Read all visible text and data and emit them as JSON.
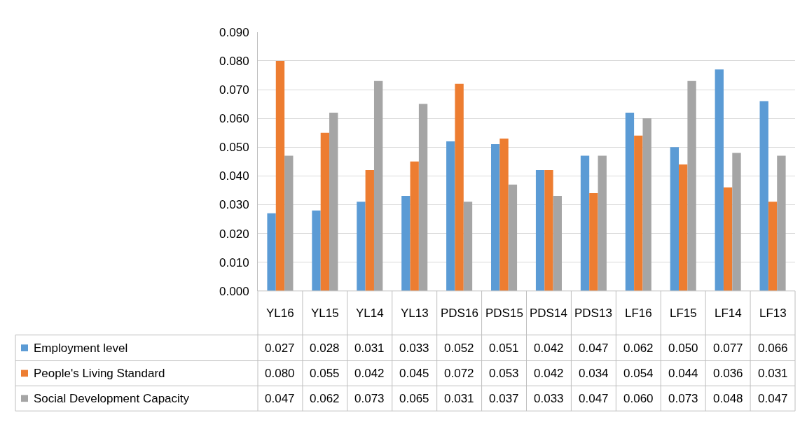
{
  "chart_data": {
    "type": "bar",
    "categories": [
      "YL16",
      "YL15",
      "YL14",
      "YL13",
      "PDS16",
      "PDS15",
      "PDS14",
      "PDS13",
      "LF16",
      "LF15",
      "LF14",
      "LF13"
    ],
    "series": [
      {
        "name": "Employment level",
        "color": "#5b9bd5",
        "values": [
          0.027,
          0.028,
          0.031,
          0.033,
          0.052,
          0.051,
          0.042,
          0.047,
          0.062,
          0.05,
          0.077,
          0.066
        ],
        "value_labels": [
          "0.027",
          "0.028",
          "0.031",
          "0.033",
          "0.052",
          "0.051",
          "0.042",
          "0.047",
          "0.062",
          "0.050",
          "0.077",
          "0.066"
        ]
      },
      {
        "name": "People's Living Standard",
        "color": "#ed7d31",
        "values": [
          0.08,
          0.055,
          0.042,
          0.045,
          0.072,
          0.053,
          0.042,
          0.034,
          0.054,
          0.044,
          0.036,
          0.031
        ],
        "value_labels": [
          "0.080",
          "0.055",
          "0.042",
          "0.045",
          "0.072",
          "0.053",
          "0.042",
          "0.034",
          "0.054",
          "0.044",
          "0.036",
          "0.031"
        ]
      },
      {
        "name": "Social Development Capacity",
        "color": "#a5a5a5",
        "values": [
          0.047,
          0.062,
          0.073,
          0.065,
          0.031,
          0.037,
          0.033,
          0.047,
          0.06,
          0.073,
          0.048,
          0.047
        ],
        "value_labels": [
          "0.047",
          "0.062",
          "0.073",
          "0.065",
          "0.031",
          "0.037",
          "0.033",
          "0.047",
          "0.060",
          "0.073",
          "0.048",
          "0.047"
        ]
      }
    ],
    "ylim": [
      0,
      0.09
    ],
    "yticks": [
      {
        "value": 0,
        "label": "0.000"
      },
      {
        "value": 0.01,
        "label": "0.010"
      },
      {
        "value": 0.02,
        "label": "0.020"
      },
      {
        "value": 0.03,
        "label": "0.030"
      },
      {
        "value": 0.04,
        "label": "0.040"
      },
      {
        "value": 0.05,
        "label": "0.050"
      },
      {
        "value": 0.06,
        "label": "0.060"
      },
      {
        "value": 0.07,
        "label": "0.070"
      },
      {
        "value": 0.08,
        "label": "0.080"
      },
      {
        "value": 0.09,
        "label": "0.090"
      }
    ],
    "grid": "y",
    "legend": "bottom"
  }
}
